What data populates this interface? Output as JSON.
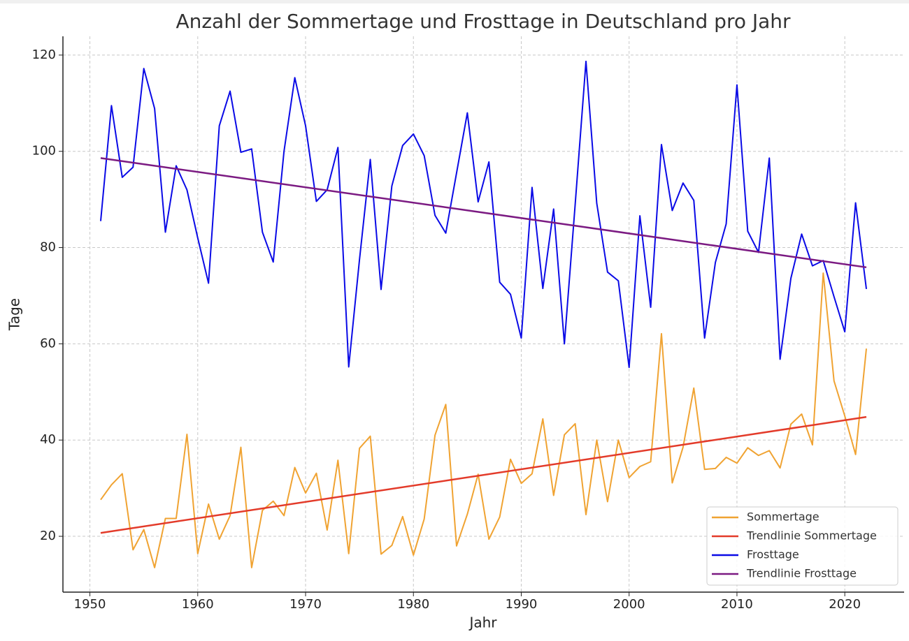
{
  "chart_data": {
    "type": "line",
    "title": "Anzahl der Sommertage und Frosttage in Deutschland pro Jahr",
    "x_label": "Jahr",
    "y_label": "Tage",
    "x": [
      1951,
      1952,
      1953,
      1954,
      1955,
      1956,
      1957,
      1958,
      1959,
      1960,
      1961,
      1962,
      1963,
      1964,
      1965,
      1966,
      1967,
      1968,
      1969,
      1970,
      1971,
      1972,
      1973,
      1974,
      1975,
      1976,
      1977,
      1978,
      1979,
      1980,
      1981,
      1982,
      1983,
      1984,
      1985,
      1986,
      1987,
      1988,
      1989,
      1990,
      1991,
      1992,
      1993,
      1994,
      1995,
      1996,
      1997,
      1998,
      1999,
      2000,
      2001,
      2002,
      2003,
      2004,
      2005,
      2006,
      2007,
      2008,
      2009,
      2010,
      2011,
      2012,
      2013,
      2014,
      2015,
      2016,
      2017,
      2018,
      2019,
      2020,
      2021,
      2022
    ],
    "series": [
      {
        "name": "Sommertage",
        "color": "#f0a332",
        "values": [
          27.6,
          30.7,
          33,
          17.2,
          21.4,
          13.5,
          23.7,
          23.7,
          41.2,
          16.4,
          26.7,
          19.4,
          24.3,
          38.5,
          13.5,
          25.4,
          27.3,
          24.3,
          34.3,
          29,
          33.1,
          21.3,
          35.8,
          16.4,
          38.3,
          40.8,
          16.3,
          18.1,
          24.1,
          16.1,
          23.6,
          41,
          47.4,
          18,
          24.6,
          32.9,
          19.4,
          24,
          36,
          31,
          33,
          44.4,
          28.5,
          41.1,
          43.4,
          24.5,
          40,
          27.2,
          40,
          32.2,
          34.5,
          35.5,
          62.1,
          31.1,
          38.5,
          50.8,
          33.9,
          34.1,
          36.4,
          35.2,
          38.4,
          36.8,
          37.8,
          34.2,
          43.3,
          45.4,
          39,
          74.7,
          52.3,
          45,
          37,
          59
        ]
      },
      {
        "name": "Trendlinie Sommertage",
        "color": "#e33b2a",
        "x": [
          1951,
          2022
        ],
        "values": [
          20.7,
          44.8
        ]
      },
      {
        "name": "Frosttage",
        "color": "#0a0ae6",
        "values": [
          85.5,
          109.5,
          94.6,
          96.7,
          117.2,
          108.9,
          83.2,
          97,
          92,
          82,
          72.6,
          105.3,
          112.5,
          99.8,
          100.5,
          83.2,
          77,
          100,
          115.3,
          105.3,
          89.6,
          92,
          100.8,
          55.2,
          77.5,
          98.3,
          71.3,
          92.8,
          101.2,
          103.6,
          99.1,
          86.7,
          83,
          95.5,
          108,
          89.5,
          97.8,
          72.8,
          70.3,
          61.2,
          92.5,
          71.5,
          88,
          60,
          89,
          118.7,
          89.2,
          74.9,
          73.1,
          55.1,
          86.6,
          67.6,
          101.4,
          87.7,
          93.4,
          89.8,
          61.2,
          76.9,
          84.9,
          113.8,
          83.4,
          79,
          98.6,
          56.8,
          73.6,
          82.8,
          76.2,
          77.3,
          69.8,
          62.5,
          89.3,
          71.4
        ]
      },
      {
        "name": "Trendlinie Frosttage",
        "color": "#7b1a82",
        "x": [
          1951,
          2022
        ],
        "values": [
          98.6,
          75.9
        ]
      }
    ],
    "xlim": [
      1947.5,
      2025.5
    ],
    "ylim": [
      8.4,
      123.9
    ],
    "xticks": [
      1950,
      1960,
      1970,
      1980,
      1990,
      2000,
      2010,
      2020
    ],
    "yticks": [
      20,
      40,
      60,
      80,
      100,
      120
    ],
    "grid": true,
    "legend": "lower right"
  }
}
